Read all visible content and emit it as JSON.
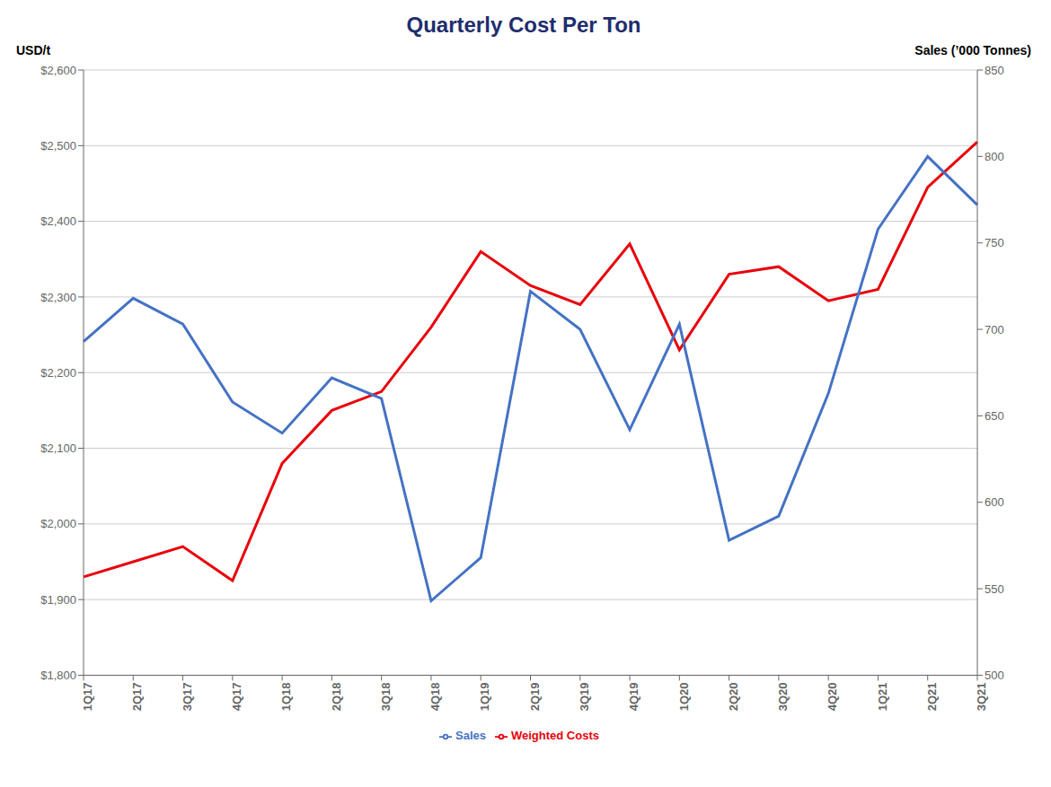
{
  "chart_data": {
    "type": "line",
    "title": "Quarterly Cost Per Ton",
    "ylabel": "USD/t",
    "y2label": "Sales (’000 Tonnes)",
    "categories": [
      "1Q17",
      "2Q17",
      "3Q17",
      "4Q17",
      "1Q18",
      "2Q18",
      "3Q18",
      "4Q18",
      "1Q19",
      "2Q19",
      "3Q19",
      "4Q19",
      "1Q20",
      "2Q20",
      "3Q20",
      "4Q20",
      "1Q21",
      "2Q21",
      "3Q21"
    ],
    "series": [
      {
        "name": "Weighted Costs",
        "color": "#e8000b",
        "values": [
          1930,
          1950,
          1970,
          1925,
          2080,
          2150,
          2175,
          2260,
          2360,
          2315,
          2290,
          2370,
          2230,
          2330,
          2340,
          2295,
          2310,
          2445,
          2505
        ]
      },
      {
        "name": "Sales",
        "color": "#4472c4",
        "axis": "y2",
        "values": [
          693,
          718,
          703,
          658,
          640,
          672,
          660,
          543,
          568,
          722,
          700,
          642,
          703,
          578,
          592,
          663,
          758,
          800,
          772
        ]
      }
    ],
    "ylim": [
      1800,
      2600
    ],
    "yticks": [
      {
        "value": 1800,
        "label": "$1,800"
      },
      {
        "value": 1900,
        "label": "$1,900"
      },
      {
        "value": 2000,
        "label": "$2,000"
      },
      {
        "value": 2100,
        "label": "$2,100"
      },
      {
        "value": 2200,
        "label": "$2,200"
      },
      {
        "value": 2300,
        "label": "$2,300"
      },
      {
        "value": 2400,
        "label": "$2,400"
      },
      {
        "value": 2500,
        "label": "$2,500"
      },
      {
        "value": 2600,
        "label": "$2,600"
      }
    ],
    "y2lim": [
      500,
      850
    ],
    "y2ticks": [
      500,
      550,
      600,
      650,
      700,
      750,
      800,
      850
    ],
    "grid": true,
    "legend": "bottom"
  }
}
